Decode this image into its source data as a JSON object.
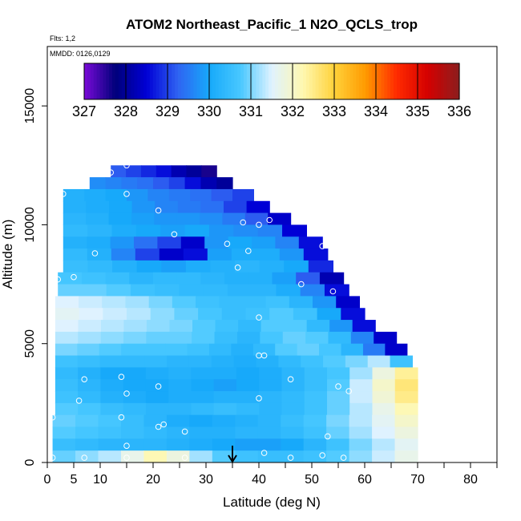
{
  "title": "ATOM2 Northeast_Pacific_1 N2O_QCLS_trop",
  "flights_label": "Flts: 1,2",
  "dates_label": "MMDD: 0126,0129",
  "chart_data": {
    "type": "heatmap",
    "title": "ATOM2 Northeast_Pacific_1 N2O_QCLS_trop",
    "xlabel": "Latitude (deg N)",
    "ylabel": "Altitude (m)",
    "xlim": [
      0,
      85
    ],
    "ylim": [
      0,
      17500
    ],
    "x_ticks": [
      0,
      5,
      10,
      20,
      30,
      40,
      50,
      60,
      70,
      80
    ],
    "y_ticks": [
      0,
      5000,
      10000,
      15000
    ],
    "colorbar": {
      "min": 327,
      "max": 336,
      "ticks": [
        327,
        328,
        329,
        330,
        331,
        332,
        333,
        334,
        335,
        336
      ],
      "colors": [
        "#7a0bd8",
        "#00007a",
        "#0000d6",
        "#2f63f2",
        "#17a9fa",
        "#48c8ff",
        "#dff2ff",
        "#fff8b0",
        "#ffd23a",
        "#ff9a00",
        "#ff2a00",
        "#d40000",
        "#8b1e1e"
      ]
    },
    "marker": {
      "type": "arrow",
      "x": 35
    },
    "rows": [
      {
        "alt": 12250,
        "x0": 12,
        "x1": 32,
        "v": [
          329.2,
          329.0,
          328.8,
          328.6,
          328.2,
          328.0,
          327.6
        ]
      },
      {
        "alt": 11750,
        "x0": 8,
        "x1": 35,
        "v": [
          329.7,
          329.6,
          329.5,
          329.4,
          329.2,
          329.0,
          328.6,
          328.2,
          328.0
        ]
      },
      {
        "alt": 11250,
        "x0": 3,
        "x1": 39,
        "v": [
          330.2,
          330.1,
          330.0,
          329.8,
          329.6,
          329.5,
          329.4,
          329.2,
          329.0
        ]
      },
      {
        "alt": 10750,
        "x0": 3,
        "x1": 42,
        "v": [
          330.2,
          330.1,
          330.0,
          329.8,
          329.6,
          329.5,
          329.4,
          329.0,
          328.5
        ]
      },
      {
        "alt": 10250,
        "x0": 3,
        "x1": 46,
        "v": [
          330.3,
          330.2,
          330.0,
          329.9,
          329.8,
          329.8,
          329.7,
          329.5,
          329.2,
          328.4
        ]
      },
      {
        "alt": 9750,
        "x0": 3,
        "x1": 49,
        "v": [
          330.4,
          330.3,
          330.1,
          330.0,
          329.9,
          330.0,
          329.8,
          329.7,
          329.6,
          328.5
        ]
      },
      {
        "alt": 9250,
        "x0": 3,
        "x1": 52,
        "v": [
          330.2,
          330.1,
          329.8,
          329.4,
          329.0,
          328.4,
          329.8,
          330.0,
          329.9,
          329.6,
          328.6
        ]
      },
      {
        "alt": 8750,
        "x0": 3,
        "x1": 53,
        "v": [
          330.4,
          330.2,
          329.6,
          329.0,
          328.4,
          328.6,
          329.9,
          330.1,
          330.1,
          329.8,
          328.6
        ]
      },
      {
        "alt": 8250,
        "x0": 3,
        "x1": 54,
        "v": [
          330.5,
          330.4,
          330.2,
          330.0,
          329.9,
          330.1,
          330.2,
          330.3,
          330.2,
          330.0,
          328.8
        ]
      },
      {
        "alt": 7750,
        "x0": 2,
        "x1": 56,
        "v": [
          330.7,
          330.6,
          330.5,
          330.3,
          330.4,
          330.4,
          330.3,
          330.2,
          330.2,
          329.9,
          329.2,
          328.2
        ]
      },
      {
        "alt": 7250,
        "x0": 2,
        "x1": 57,
        "v": [
          330.9,
          330.9,
          330.8,
          330.6,
          330.5,
          330.4,
          330.4,
          330.3,
          330.3,
          330.1,
          329.6,
          328.6
        ]
      },
      {
        "alt": 6750,
        "x0": 1.5,
        "x1": 59,
        "v": [
          331.5,
          331.4,
          331.3,
          331.2,
          331.0,
          330.8,
          330.6,
          330.5,
          330.5,
          330.6,
          330.3,
          329.8,
          328.4
        ]
      },
      {
        "alt": 6250,
        "x0": 1.5,
        "x1": 60,
        "v": [
          331.6,
          331.5,
          331.4,
          331.3,
          331.1,
          330.9,
          330.7,
          330.5,
          330.6,
          330.8,
          330.6,
          330.0,
          328.6
        ]
      },
      {
        "alt": 5750,
        "x0": 1.5,
        "x1": 62,
        "v": [
          331.5,
          331.4,
          331.3,
          331.2,
          331.1,
          331.0,
          330.8,
          330.6,
          330.4,
          330.8,
          330.8,
          330.4,
          329.8,
          328.6
        ]
      },
      {
        "alt": 5250,
        "x0": 1.5,
        "x1": 66,
        "v": [
          331.3,
          331.2,
          331.1,
          331.0,
          330.9,
          330.9,
          330.8,
          330.5,
          330.3,
          330.7,
          330.9,
          330.8,
          330.4,
          329.6,
          328.4
        ]
      },
      {
        "alt": 4750,
        "x0": 1.5,
        "x1": 68,
        "v": [
          331.0,
          330.9,
          330.8,
          330.7,
          330.7,
          330.7,
          330.6,
          330.4,
          330.2,
          330.4,
          330.8,
          330.9,
          330.7,
          330.3,
          329.5,
          328.4
        ]
      },
      {
        "alt": 4250,
        "x0": 1.5,
        "x1": 69,
        "v": [
          330.6,
          330.5,
          330.4,
          330.4,
          330.4,
          330.3,
          330.3,
          330.2,
          330.1,
          330.2,
          330.4,
          330.6,
          330.8,
          331.0,
          331.3,
          330.6
        ]
      },
      {
        "alt": 3750,
        "x0": 1.5,
        "x1": 70,
        "v": [
          330.4,
          330.2,
          330.0,
          330.0,
          330.1,
          330.2,
          330.1,
          330.1,
          330.0,
          330.1,
          330.3,
          330.5,
          330.7,
          331.2,
          331.8,
          332.4
        ]
      },
      {
        "alt": 3250,
        "x0": 1.5,
        "x1": 70,
        "v": [
          330.5,
          330.3,
          330.1,
          330.0,
          330.0,
          330.1,
          330.0,
          329.9,
          330.0,
          330.1,
          330.3,
          330.5,
          330.8,
          331.4,
          332.0,
          332.6
        ]
      },
      {
        "alt": 2750,
        "x0": 1.5,
        "x1": 70,
        "v": [
          330.6,
          330.4,
          330.2,
          330.1,
          330.0,
          330.1,
          330.1,
          330.2,
          330.2,
          330.3,
          330.4,
          330.6,
          330.9,
          331.4,
          331.9,
          332.5
        ]
      },
      {
        "alt": 2250,
        "x0": 1.5,
        "x1": 70,
        "v": [
          330.8,
          330.7,
          330.5,
          330.4,
          330.3,
          330.3,
          330.4,
          330.5,
          330.4,
          330.3,
          330.4,
          330.6,
          330.9,
          331.3,
          331.7,
          332.2
        ]
      },
      {
        "alt": 1750,
        "x0": 1,
        "x1": 70,
        "v": [
          330.9,
          330.8,
          330.7,
          330.5,
          330.3,
          330.1,
          330.0,
          330.1,
          330.2,
          330.3,
          330.5,
          330.7,
          331.0,
          331.3,
          331.6,
          332.0
        ]
      },
      {
        "alt": 1250,
        "x0": 1,
        "x1": 70,
        "v": [
          330.8,
          330.7,
          330.6,
          330.5,
          330.4,
          330.3,
          330.2,
          330.2,
          330.3,
          330.3,
          330.4,
          330.6,
          330.9,
          331.2,
          331.5,
          331.8
        ]
      },
      {
        "alt": 750,
        "x0": 1,
        "x1": 70,
        "v": [
          330.5,
          330.4,
          330.3,
          330.3,
          330.3,
          330.2,
          330.1,
          330.0,
          329.9,
          329.9,
          330.0,
          330.3,
          330.6,
          331.0,
          331.3,
          331.6
        ]
      },
      {
        "alt": 250,
        "x0": 1,
        "x1": 70,
        "v": [
          330.9,
          331.1,
          331.3,
          331.7,
          332.2,
          331.8,
          331.2,
          330.8,
          330.6,
          330.5,
          330.5,
          330.6,
          330.8,
          331.1,
          331.4,
          331.7
        ]
      }
    ],
    "points": [
      [
        12,
        12200
      ],
      [
        15,
        12500
      ],
      [
        2,
        11300
      ],
      [
        3,
        11300
      ],
      [
        15,
        11300
      ],
      [
        21,
        10600
      ],
      [
        37,
        10100
      ],
      [
        40,
        10000
      ],
      [
        42,
        10200
      ],
      [
        24,
        9600
      ],
      [
        34,
        9200
      ],
      [
        52,
        9100
      ],
      [
        9,
        8800
      ],
      [
        38,
        8900
      ],
      [
        36,
        8200
      ],
      [
        2,
        7700
      ],
      [
        5,
        7800
      ],
      [
        48,
        7500
      ],
      [
        54,
        7200
      ],
      [
        40,
        6100
      ],
      [
        40,
        4500
      ],
      [
        41,
        4500
      ],
      [
        7,
        3500
      ],
      [
        14,
        3600
      ],
      [
        21,
        3200
      ],
      [
        46,
        3500
      ],
      [
        55,
        3200
      ],
      [
        15,
        2900
      ],
      [
        6,
        2600
      ],
      [
        40,
        2700
      ],
      [
        57,
        3000
      ],
      [
        71,
        3400
      ],
      [
        1,
        1900
      ],
      [
        14,
        1900
      ],
      [
        22,
        1600
      ],
      [
        21,
        1500
      ],
      [
        26,
        1300
      ],
      [
        53,
        1100
      ],
      [
        15,
        700
      ],
      [
        1,
        200
      ],
      [
        7,
        200
      ],
      [
        15,
        200
      ],
      [
        26,
        200
      ],
      [
        41,
        400
      ],
      [
        46,
        200
      ],
      [
        52,
        300
      ],
      [
        56,
        200
      ]
    ]
  }
}
